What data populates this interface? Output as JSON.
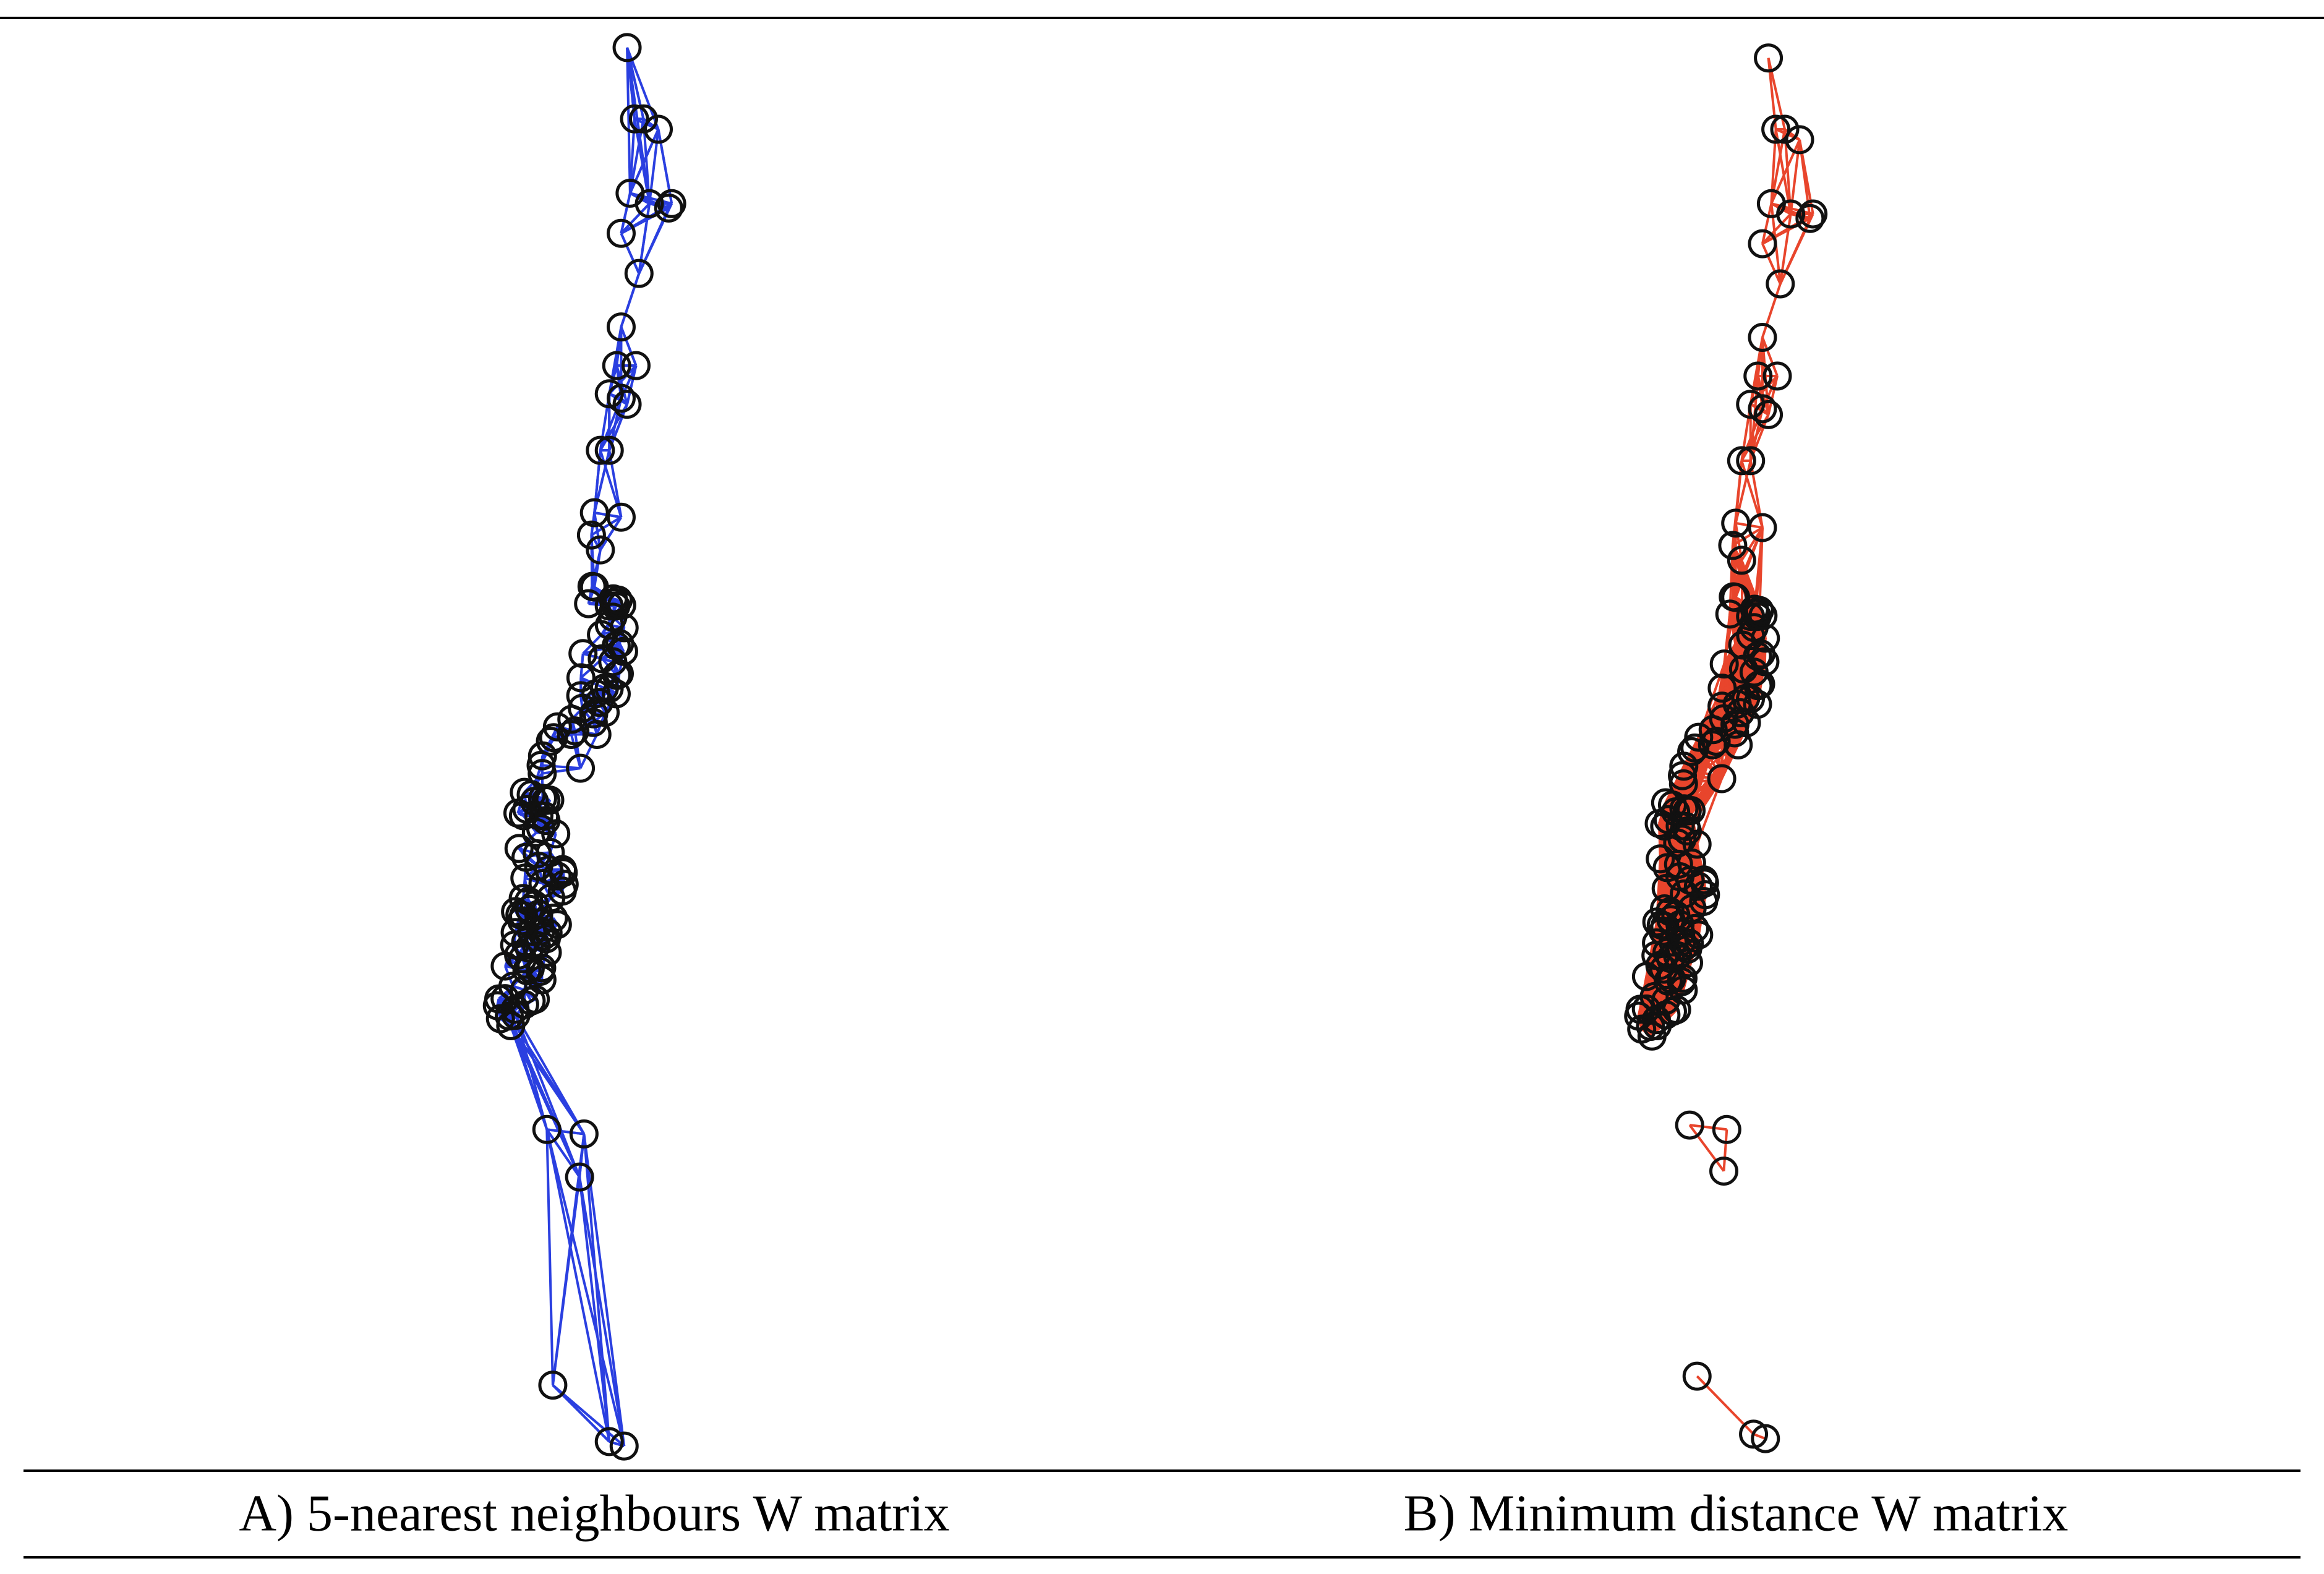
{
  "panels": [
    {
      "caption": "A) 5-nearest neighbours W matrix"
    },
    {
      "caption": "B) Minimum distance W matrix"
    }
  ]
}
